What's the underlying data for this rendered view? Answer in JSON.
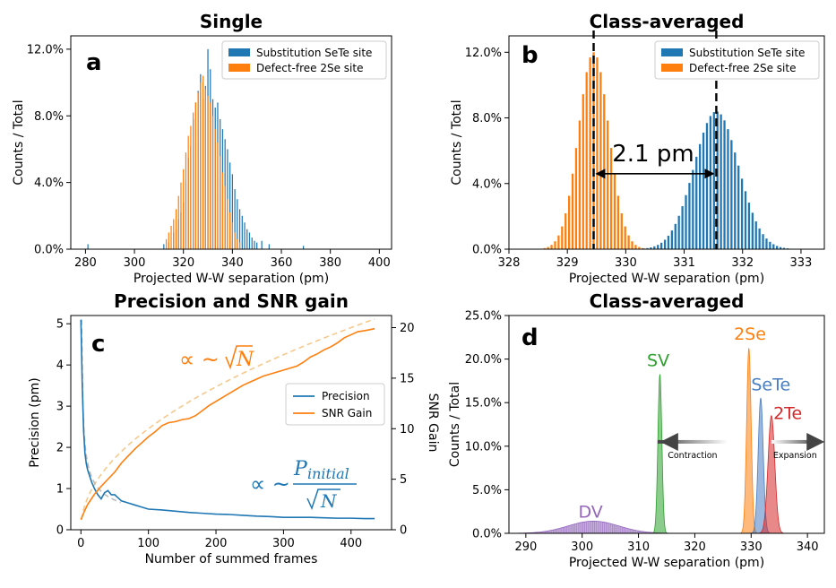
{
  "colors": {
    "blue": "#1f77b4",
    "orange": "#ff7f0e",
    "green": "#2ca02c",
    "purple": "#9467bd",
    "red": "#d62728",
    "lightblue": "#4a7ec2",
    "dashorange": "#f7c88c",
    "dashgray": "#bbbbbb"
  },
  "chart_data": [
    {
      "id": "a",
      "type": "bar",
      "title": "Single",
      "panel_letter": "a",
      "xlabel": "Projected W-W separation (pm)",
      "ylabel": "Counts / Total",
      "xlim": [
        274,
        405
      ],
      "ylim": [
        0,
        0.128
      ],
      "xticks": [
        280,
        300,
        320,
        340,
        360,
        380,
        400
      ],
      "yticks": [
        0.0,
        0.04,
        0.08,
        0.12
      ],
      "ytick_labels": [
        "0.0%",
        "4.0%",
        "8.0%",
        "12.0%"
      ],
      "legend": {
        "position": "top-right",
        "entries": [
          "Substitution SeTe site",
          "Defect-free 2Se site"
        ]
      },
      "series": [
        {
          "name": "Substitution SeTe site",
          "color": "blue",
          "bin_width": 0.45,
          "x": [
            281,
            312,
            314,
            316,
            317,
            318,
            319,
            320,
            321,
            322,
            323,
            324,
            325,
            326,
            327,
            328,
            329,
            330,
            331,
            332,
            333,
            334,
            335,
            336,
            337,
            338,
            339,
            340,
            341,
            342,
            343,
            344,
            345,
            346,
            347,
            348,
            349,
            350,
            352,
            355,
            369
          ],
          "values": [
            0.003,
            0.003,
            0.004,
            0.01,
            0.012,
            0.018,
            0.022,
            0.028,
            0.04,
            0.055,
            0.062,
            0.078,
            0.088,
            0.095,
            0.105,
            0.09,
            0.098,
            0.12,
            0.108,
            0.09,
            0.085,
            0.088,
            0.078,
            0.072,
            0.066,
            0.06,
            0.052,
            0.045,
            0.036,
            0.03,
            0.024,
            0.02,
            0.016,
            0.012,
            0.01,
            0.007,
            0.005,
            0.004,
            0.005,
            0.003,
            0.002
          ]
        },
        {
          "name": "Defect-free 2Se site",
          "color": "orange",
          "bin_width": 0.45,
          "x": [
            313,
            314,
            315,
            316,
            317,
            318,
            319,
            320,
            321,
            322,
            323,
            324,
            325,
            326,
            327,
            328,
            329,
            330,
            331,
            332,
            333,
            334,
            335,
            336,
            337,
            338,
            339,
            340,
            341,
            342,
            343
          ],
          "values": [
            0.006,
            0.01,
            0.014,
            0.018,
            0.024,
            0.032,
            0.04,
            0.048,
            0.058,
            0.068,
            0.074,
            0.082,
            0.088,
            0.094,
            0.1,
            0.104,
            0.096,
            0.092,
            0.088,
            0.08,
            0.072,
            0.064,
            0.056,
            0.046,
            0.038,
            0.03,
            0.022,
            0.016,
            0.01,
            0.006,
            0.004
          ]
        }
      ]
    },
    {
      "id": "b",
      "type": "bar",
      "title": "Class-averaged",
      "panel_letter": "b",
      "xlabel": "Projected W-W separation (pm)",
      "ylabel": "Counts / Total",
      "xlim": [
        328,
        333.4
      ],
      "ylim": [
        0,
        0.13
      ],
      "xticks": [
        328,
        329,
        330,
        331,
        332,
        333
      ],
      "yticks": [
        0.0,
        0.04,
        0.08,
        0.12
      ],
      "ytick_labels": [
        "0.0%",
        "4.0%",
        "8.0%",
        "12.0%"
      ],
      "legend": {
        "position": "top-right",
        "entries": [
          "Substitution SeTe site",
          "Defect-free 2Se site"
        ]
      },
      "annotation": {
        "text": "2.1 pm",
        "from_x": 329.45,
        "to_x": 331.55,
        "y": 0.046
      },
      "vlines": [
        329.45,
        331.55
      ],
      "series": [
        {
          "name": "Defect-free 2Se site",
          "color": "orange",
          "mean": 329.45,
          "sd": 0.26,
          "peak": 0.12,
          "start": 328.25,
          "end": 330.65,
          "step": 0.06,
          "bin_width": 0.035
        },
        {
          "name": "Substitution SeTe site",
          "color": "blue",
          "mean": 331.55,
          "sd": 0.38,
          "peak": 0.084,
          "start": 329.95,
          "end": 333.05,
          "step": 0.06,
          "bin_width": 0.035
        }
      ]
    },
    {
      "id": "c",
      "type": "line",
      "title": "Precision and SNR gain",
      "panel_letter": "c",
      "xlabel": "Number of summed frames",
      "ylabel": "Precision (pm)",
      "y2label": "SNR Gain",
      "xlim": [
        -15,
        460
      ],
      "ylim": [
        0,
        5.2
      ],
      "y2lim": [
        0,
        21.2
      ],
      "xticks": [
        0,
        100,
        200,
        300,
        400
      ],
      "yticks": [
        0,
        1,
        2,
        3,
        4,
        5
      ],
      "y2ticks": [
        0,
        5,
        10,
        15,
        20
      ],
      "legend": {
        "position": "center-right",
        "entries": [
          "Precision",
          "SNR Gain"
        ]
      },
      "formula_top": {
        "prefix": "∝ ~",
        "radicand": "N"
      },
      "formula_bottom": {
        "prefix": "∝ ~",
        "numerator": "P",
        "subscript": "initial",
        "radicand": "N"
      },
      "series": [
        {
          "name": "Precision",
          "color": "blue",
          "axis": "left",
          "x": [
            0,
            2,
            4,
            6,
            8,
            10,
            13,
            16,
            20,
            25,
            30,
            35,
            40,
            45,
            50,
            60,
            70,
            80,
            90,
            100,
            120,
            140,
            160,
            180,
            200,
            220,
            240,
            260,
            280,
            300,
            320,
            340,
            360,
            380,
            400,
            420,
            435
          ],
          "values": [
            5.1,
            3.5,
            2.4,
            1.85,
            1.6,
            1.45,
            1.3,
            1.15,
            1.0,
            0.85,
            0.75,
            0.9,
            0.95,
            0.85,
            0.85,
            0.7,
            0.65,
            0.6,
            0.55,
            0.5,
            0.48,
            0.45,
            0.42,
            0.4,
            0.38,
            0.37,
            0.35,
            0.33,
            0.32,
            0.3,
            0.3,
            0.3,
            0.29,
            0.28,
            0.28,
            0.27,
            0.27
          ]
        },
        {
          "name": "SNR Gain",
          "color": "orange",
          "axis": "right",
          "x": [
            0,
            5,
            10,
            20,
            30,
            40,
            50,
            60,
            70,
            80,
            90,
            100,
            110,
            120,
            130,
            140,
            150,
            160,
            170,
            180,
            190,
            200,
            210,
            220,
            230,
            240,
            250,
            260,
            270,
            280,
            290,
            300,
            310,
            320,
            330,
            340,
            350,
            360,
            370,
            380,
            390,
            400,
            410,
            420,
            435
          ],
          "values": [
            1.0,
            1.8,
            2.5,
            3.5,
            4.3,
            5.0,
            5.7,
            6.6,
            7.3,
            8.0,
            8.6,
            9.2,
            9.7,
            10.3,
            10.6,
            10.7,
            10.9,
            11.0,
            11.3,
            11.8,
            12.3,
            12.7,
            13.1,
            13.5,
            13.9,
            14.3,
            14.6,
            14.9,
            15.2,
            15.4,
            15.6,
            15.8,
            16.0,
            16.2,
            16.6,
            17.1,
            17.4,
            17.8,
            18.1,
            18.5,
            19.0,
            19.3,
            19.6,
            19.7,
            19.9
          ]
        }
      ],
      "fits": [
        {
          "name": "SNR sqrt fit",
          "color": "dashorange",
          "axis": "right",
          "form": "sqrt",
          "coef": 1.0,
          "xmax": 435
        },
        {
          "name": "Precision fit",
          "color": "dashgray",
          "axis": "left",
          "form": "inv_sqrt",
          "coef": 5.1,
          "xmax": 60
        }
      ]
    },
    {
      "id": "d",
      "type": "area",
      "title": "Class-averaged",
      "panel_letter": "d",
      "xlabel": "Projected W-W separation (pm)",
      "ylabel": "Counts / Total",
      "xlim": [
        287,
        343
      ],
      "ylim": [
        0,
        0.25
      ],
      "xticks": [
        290,
        300,
        310,
        320,
        330,
        340
      ],
      "yticks": [
        0.0,
        0.05,
        0.1,
        0.15,
        0.2,
        0.25
      ],
      "ytick_labels": [
        "0.0%",
        "5.0%",
        "10.0%",
        "15.0%",
        "20.0%",
        "25.0%"
      ],
      "arrows": {
        "left_label": "Contraction",
        "right_label": "Expansion"
      },
      "series": [
        {
          "name": "DV",
          "color": "purple",
          "mean": 302,
          "sd": 4.5,
          "peak": 0.014,
          "label_x": 301.5,
          "label_y": 0.018
        },
        {
          "name": "SV",
          "color": "green",
          "mean": 313.8,
          "sd": 0.35,
          "peak": 0.182,
          "label_x": 313.5,
          "label_y": 0.192
        },
        {
          "name": "2Se",
          "color": "orange",
          "mean": 329.6,
          "sd": 0.4,
          "peak": 0.212,
          "label_x": 329.8,
          "label_y": 0.222
        },
        {
          "name": "SeTe",
          "color": "lightblue",
          "mean": 331.7,
          "sd": 0.45,
          "peak": 0.155,
          "label_x": 333.5,
          "label_y": 0.164
        },
        {
          "name": "2Te",
          "color": "red",
          "mean": 333.6,
          "sd": 0.6,
          "peak": 0.135,
          "label_x": 336.5,
          "label_y": 0.131
        }
      ]
    }
  ]
}
